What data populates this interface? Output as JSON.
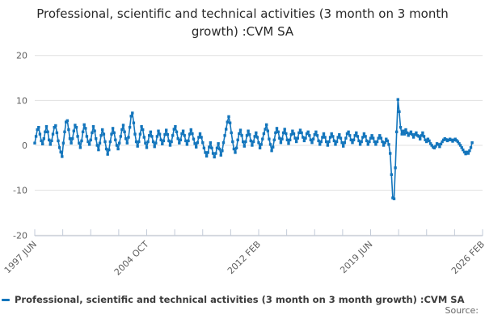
{
  "header": {
    "title": "Professional, scientific and technical activities (3 month on 3 month growth) :CVM SA"
  },
  "legend": {
    "label": "Professional, scientific and technical activities (3 month on 3 month growth) :CVM SA",
    "marker_color": "#1375bc"
  },
  "footer": {
    "source_label": "Source:"
  },
  "chart_data": {
    "type": "line",
    "title": "Professional, scientific and technical activities (3 month on 3 month growth) :CVM SA",
    "xlabel": "",
    "ylabel": "",
    "ylim": [
      -20,
      20
    ],
    "yticks": [
      20,
      10,
      0,
      -10,
      -20
    ],
    "grid": "horizontal",
    "legend_position": "bottom-left",
    "marker": "square",
    "x_tick_count": 17,
    "x_label_every_n_ticks": 4,
    "x_tick_labels": [
      "1997 JUN",
      "2004 OCT",
      "2012 FEB",
      "2019 JUN",
      "2026 FEB"
    ],
    "x_axis_months_span": 344,
    "colors": {
      "line": "#1375bc",
      "grid": "#e1e1e1",
      "axis_line": "#c3cbd8",
      "axis_text": "#5f5f5f"
    },
    "series": [
      {
        "name": "Professional, scientific and technical activities (3 month on 3 month growth) :CVM SA",
        "color": "#1375bc",
        "x_start": "1997 JUN",
        "frequency": "monthly",
        "values": [
          0.5,
          2.0,
          3.5,
          4.0,
          2.5,
          1.0,
          0.3,
          1.5,
          3.0,
          4.2,
          3.0,
          1.2,
          0.2,
          1.0,
          2.5,
          4.0,
          4.4,
          2.8,
          1.0,
          -0.5,
          -1.5,
          -2.5,
          0.5,
          3.0,
          5.2,
          5.5,
          3.5,
          1.5,
          0.5,
          1.5,
          3.2,
          4.5,
          4.0,
          2.0,
          0.5,
          -0.5,
          1.0,
          3.0,
          4.6,
          3.8,
          2.0,
          0.8,
          0.2,
          1.2,
          2.8,
          4.2,
          3.2,
          1.5,
          0.0,
          -1.0,
          0.5,
          2.2,
          3.5,
          2.5,
          0.8,
          -0.8,
          -2.0,
          -1.0,
          0.8,
          2.5,
          3.8,
          2.8,
          1.2,
          0.0,
          -0.8,
          0.5,
          2.0,
          3.5,
          4.5,
          3.0,
          1.5,
          0.5,
          1.8,
          4.0,
          6.5,
          7.2,
          5.0,
          2.5,
          0.8,
          -0.2,
          0.8,
          2.5,
          4.2,
          3.5,
          1.8,
          0.5,
          -0.5,
          0.8,
          2.2,
          3.0,
          2.0,
          0.8,
          -0.3,
          0.5,
          2.0,
          3.2,
          2.5,
          1.2,
          0.3,
          1.0,
          2.4,
          3.4,
          2.4,
          1.0,
          0.0,
          0.8,
          2.2,
          3.6,
          4.2,
          3.0,
          1.5,
          0.5,
          1.2,
          2.6,
          3.2,
          2.2,
          1.0,
          0.2,
          1.0,
          2.5,
          3.5,
          2.6,
          1.4,
          0.4,
          -0.4,
          0.6,
          1.8,
          2.6,
          1.8,
          0.6,
          -0.6,
          -1.6,
          -2.4,
          -1.6,
          -0.4,
          0.6,
          -0.6,
          -1.8,
          -2.6,
          -1.8,
          -0.6,
          0.4,
          -0.8,
          -2.2,
          -1.2,
          0.6,
          2.2,
          3.6,
          5.2,
          6.4,
          5.0,
          2.8,
          0.8,
          -0.8,
          -1.6,
          -0.6,
          1.2,
          2.6,
          3.4,
          2.2,
          0.8,
          -0.2,
          0.8,
          2.2,
          3.2,
          2.4,
          1.0,
          0.0,
          0.8,
          2.0,
          2.8,
          1.8,
          0.6,
          -0.6,
          0.2,
          1.4,
          2.6,
          3.6,
          4.6,
          3.2,
          1.4,
          0.2,
          -1.2,
          -0.4,
          1.2,
          2.8,
          3.8,
          3.0,
          1.6,
          0.6,
          1.4,
          2.8,
          3.6,
          2.6,
          1.2,
          0.4,
          1.2,
          2.4,
          3.2,
          2.6,
          1.6,
          0.8,
          1.6,
          2.8,
          3.4,
          2.8,
          1.8,
          1.0,
          1.6,
          2.6,
          3.0,
          2.2,
          1.2,
          0.6,
          1.4,
          2.4,
          3.0,
          2.2,
          1.0,
          0.2,
          0.8,
          1.8,
          2.6,
          1.8,
          0.8,
          0.0,
          0.8,
          1.8,
          2.6,
          2.0,
          1.0,
          0.2,
          0.8,
          1.8,
          2.4,
          1.6,
          0.6,
          -0.2,
          0.6,
          1.6,
          2.6,
          3.0,
          2.2,
          1.2,
          0.6,
          1.2,
          2.2,
          2.8,
          2.0,
          1.0,
          0.2,
          0.8,
          1.8,
          2.6,
          2.0,
          1.0,
          0.2,
          0.8,
          1.6,
          2.2,
          1.6,
          0.8,
          0.2,
          0.8,
          1.6,
          2.2,
          1.6,
          0.8,
          0.0,
          0.6,
          1.4,
          1.0,
          0.2,
          -1.8,
          -6.5,
          -11.7,
          -11.9,
          -5.0,
          3.0,
          10.2,
          7.5,
          4.0,
          2.5,
          3.2,
          2.5,
          3.5,
          2.8,
          2.2,
          2.6,
          3.0,
          2.4,
          1.8,
          2.4,
          2.8,
          2.2,
          2.0,
          1.4,
          2.2,
          2.8,
          2.0,
          1.2,
          0.8,
          1.4,
          1.0,
          0.4,
          0.0,
          -0.4,
          -0.6,
          -0.2,
          0.4,
          0.2,
          -0.3,
          0.3,
          0.8,
          1.2,
          1.5,
          1.3,
          1.0,
          1.2,
          1.4,
          1.2,
          0.9,
          1.2,
          1.4,
          1.1,
          0.8,
          0.4,
          0.0,
          -0.5,
          -1.0,
          -1.5,
          -1.9,
          -1.5,
          -1.8,
          -1.2,
          -0.5,
          0.6
        ]
      }
    ]
  }
}
